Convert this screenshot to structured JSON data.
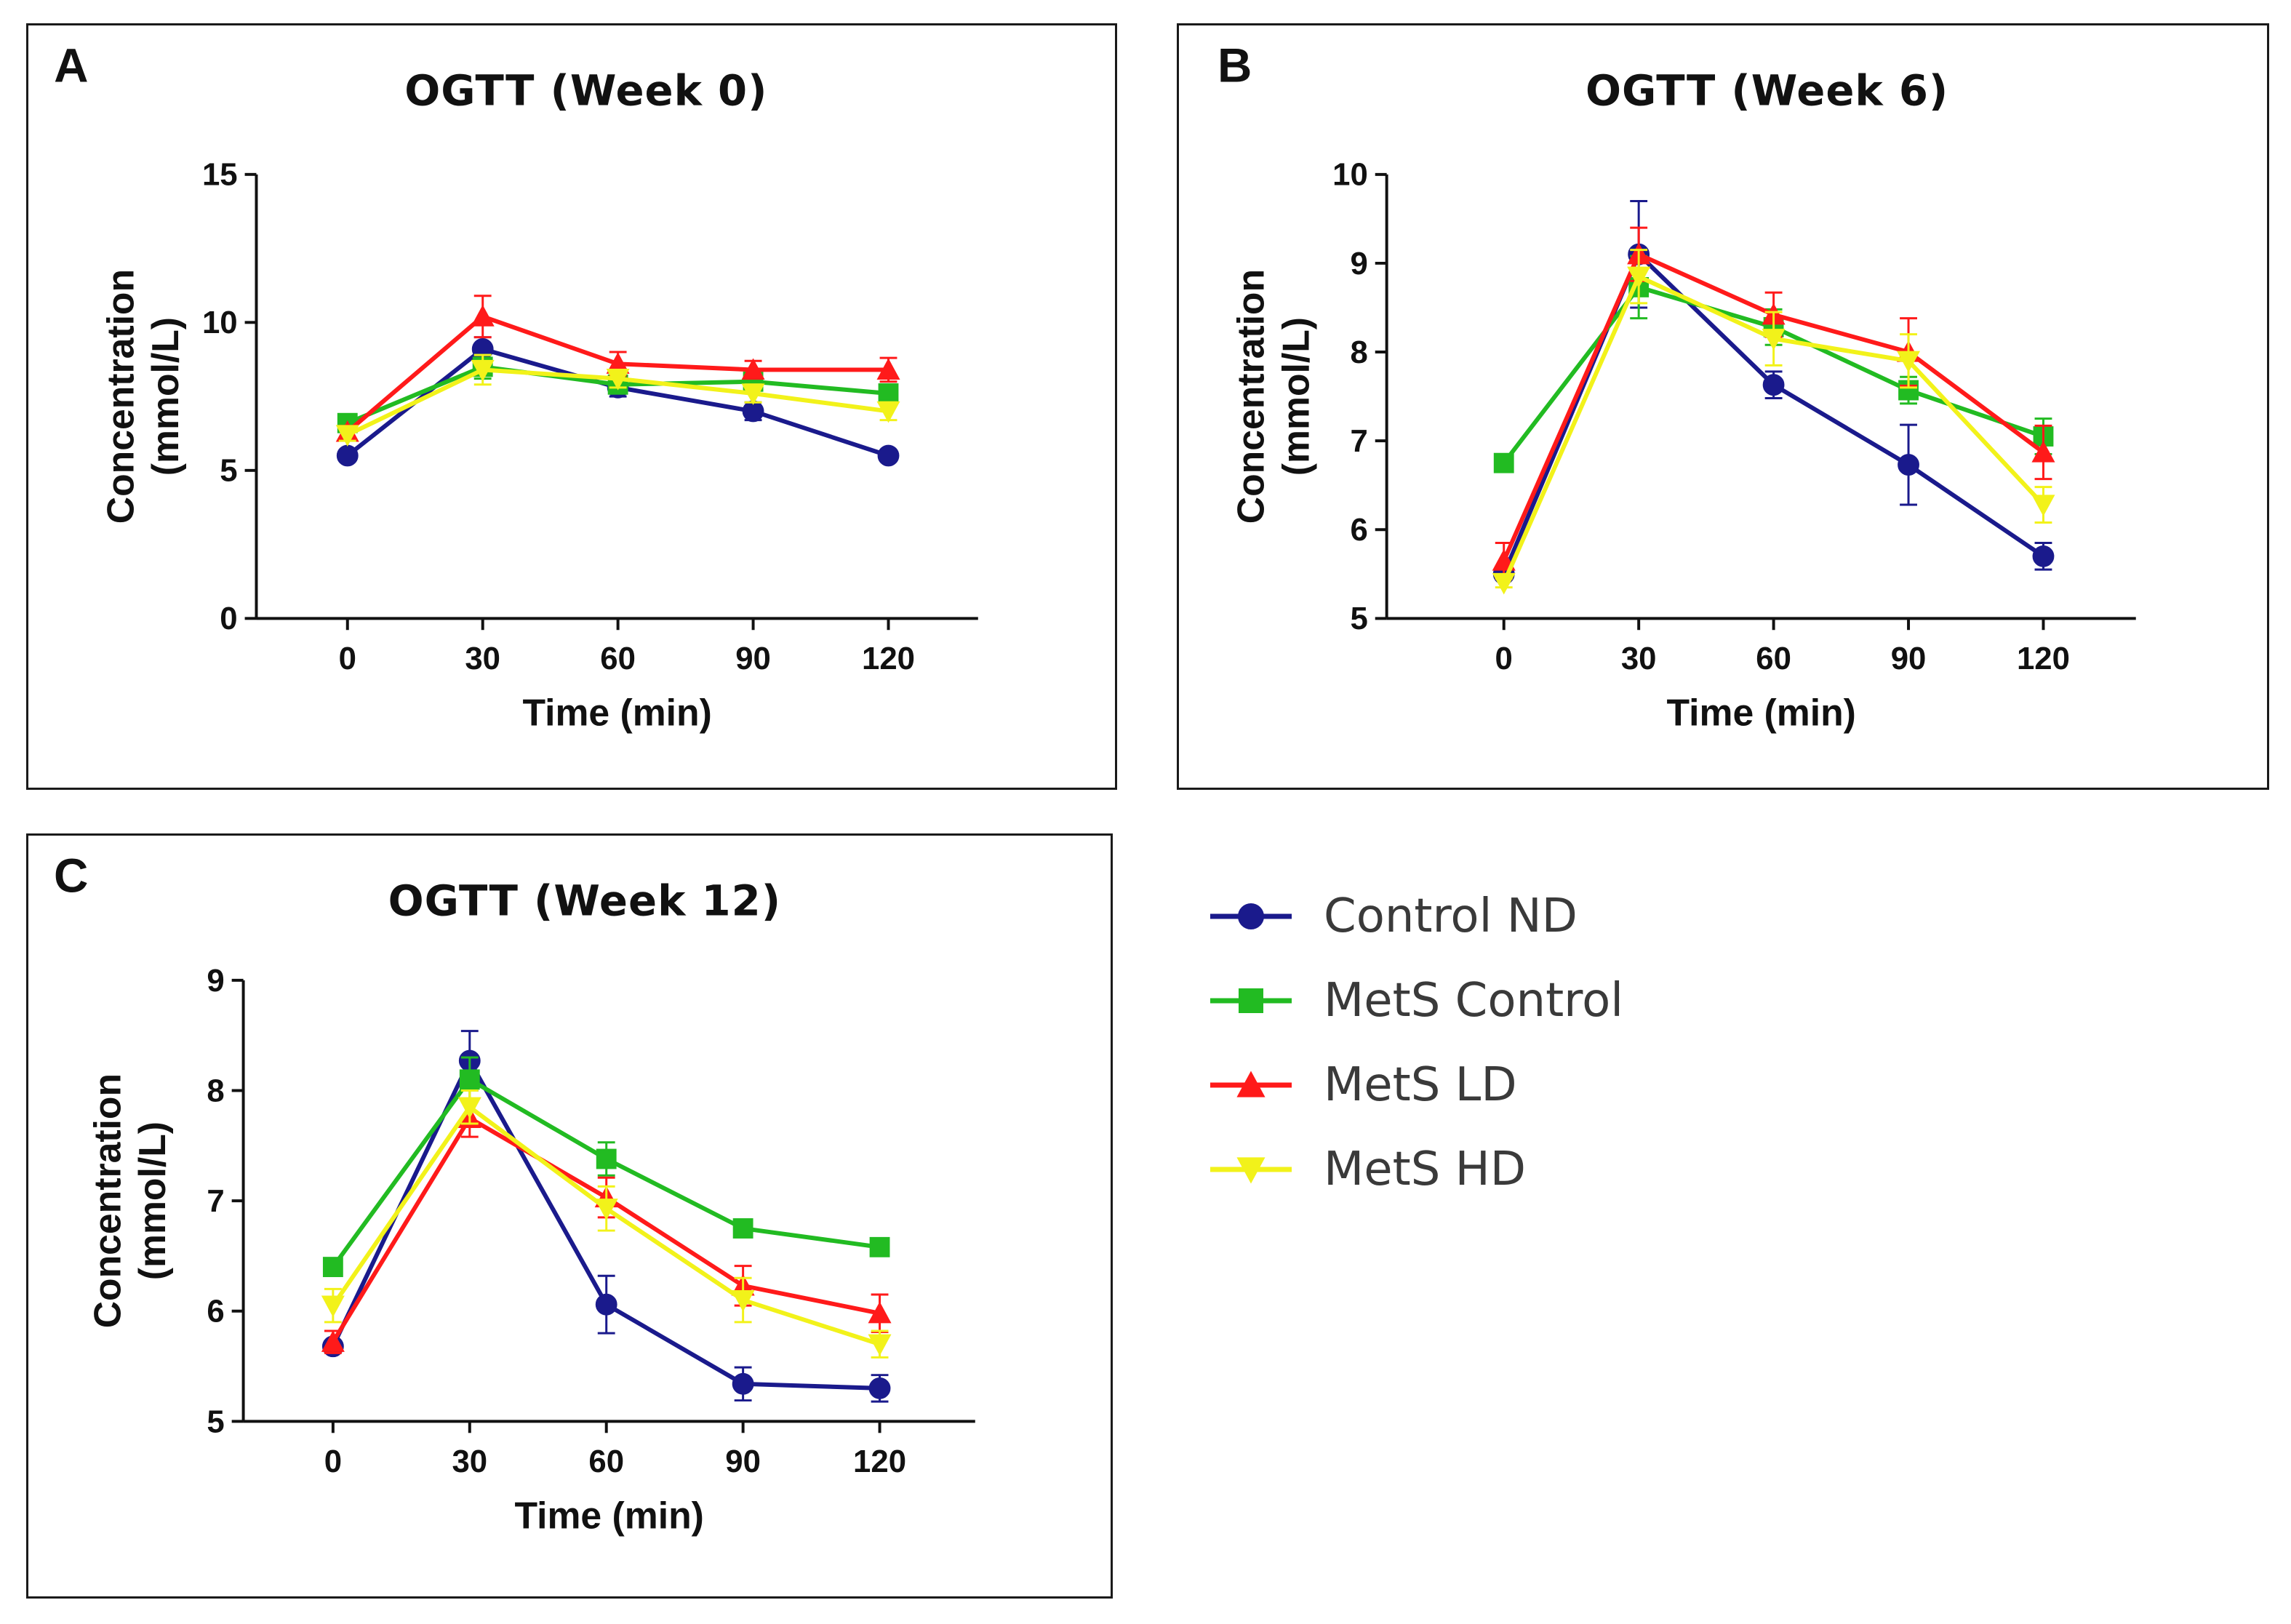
{
  "legend": [
    {
      "name": "Control ND",
      "color": "#1a1a8c",
      "marker": "circle"
    },
    {
      "name": "MetS Control",
      "color": "#22bb22",
      "marker": "square"
    },
    {
      "name": "MetS LD",
      "color": "#ff1a1a",
      "marker": "triangle-up"
    },
    {
      "name": "MetS HD",
      "color": "#f2f21a",
      "marker": "triangle-down"
    }
  ],
  "chart_data": [
    {
      "panel": "A",
      "type": "line",
      "title": "OGTT (Week 0)",
      "xlabel": "Time (min)",
      "ylabel_line1": "Concentration",
      "ylabel_line2": "(mmol/L)",
      "x": [
        0,
        30,
        60,
        90,
        120
      ],
      "xticks": [
        "0",
        "30",
        "60",
        "90",
        "120"
      ],
      "ylim": [
        0,
        15
      ],
      "yticks": [
        0,
        5,
        10,
        15
      ],
      "series": [
        {
          "name": "Control ND",
          "values": [
            5.5,
            9.1,
            7.8,
            7.0,
            5.5
          ],
          "errors": [
            0.1,
            0.4,
            0.3,
            0.3,
            0.1
          ]
        },
        {
          "name": "MetS Control",
          "values": [
            6.6,
            8.5,
            7.9,
            8.0,
            7.6
          ],
          "errors": [
            0.2,
            0.4,
            0.3,
            0.3,
            0.3
          ]
        },
        {
          "name": "MetS LD",
          "values": [
            6.3,
            10.2,
            8.6,
            8.4,
            8.4
          ],
          "errors": [
            0.2,
            0.7,
            0.4,
            0.3,
            0.4
          ]
        },
        {
          "name": "MetS HD",
          "values": [
            6.2,
            8.4,
            8.1,
            7.6,
            7.0
          ],
          "errors": [
            0.2,
            0.5,
            0.3,
            0.3,
            0.3
          ]
        }
      ]
    },
    {
      "panel": "B",
      "type": "line",
      "title": "OGTT (Week 6)",
      "xlabel": "Time (min)",
      "ylabel_line1": "Concentration",
      "ylabel_line2": "(mmol/L)",
      "x": [
        0,
        30,
        60,
        90,
        120
      ],
      "xticks": [
        "0",
        "30",
        "60",
        "90",
        "120"
      ],
      "ylim": [
        5,
        10
      ],
      "yticks": [
        5,
        6,
        7,
        8,
        9,
        10
      ],
      "series": [
        {
          "name": "Control ND",
          "values": [
            5.5,
            9.1,
            7.63,
            6.73,
            5.7
          ],
          "errors": [
            0.05,
            0.6,
            0.15,
            0.45,
            0.15
          ]
        },
        {
          "name": "MetS Control",
          "values": [
            6.75,
            8.73,
            8.28,
            7.57,
            7.05
          ],
          "errors": [
            0.05,
            0.35,
            0.2,
            0.15,
            0.2
          ]
        },
        {
          "name": "MetS LD",
          "values": [
            5.65,
            9.1,
            8.42,
            8.0,
            6.87
          ],
          "errors": [
            0.2,
            0.3,
            0.25,
            0.38,
            0.3
          ]
        },
        {
          "name": "MetS HD",
          "values": [
            5.4,
            8.85,
            8.15,
            7.9,
            6.28
          ],
          "errors": [
            0.05,
            0.3,
            0.3,
            0.3,
            0.2
          ]
        }
      ]
    },
    {
      "panel": "C",
      "type": "line",
      "title": "OGTT (Week 12)",
      "xlabel": "Time (min)",
      "ylabel_line1": "Concentration",
      "ylabel_line2": "(mmol/L)",
      "x": [
        0,
        30,
        60,
        90,
        120
      ],
      "xticks": [
        "0",
        "30",
        "60",
        "90",
        "120"
      ],
      "ylim": [
        5,
        9
      ],
      "yticks": [
        5,
        6,
        7,
        8,
        9
      ],
      "series": [
        {
          "name": "Control ND",
          "values": [
            5.68,
            8.27,
            6.06,
            5.34,
            5.3
          ],
          "errors": [
            0.05,
            0.27,
            0.26,
            0.15,
            0.12
          ]
        },
        {
          "name": "MetS Control",
          "values": [
            6.4,
            8.1,
            7.38,
            6.75,
            6.58
          ],
          "errors": [
            0.05,
            0.2,
            0.15,
            0.08,
            0.05
          ]
        },
        {
          "name": "MetS LD",
          "values": [
            5.72,
            7.75,
            7.03,
            6.23,
            5.98
          ],
          "errors": [
            0.1,
            0.17,
            0.18,
            0.18,
            0.17
          ]
        },
        {
          "name": "MetS HD",
          "values": [
            6.05,
            7.85,
            6.93,
            6.1,
            5.7
          ],
          "errors": [
            0.15,
            0.15,
            0.2,
            0.2,
            0.12
          ]
        }
      ]
    }
  ]
}
